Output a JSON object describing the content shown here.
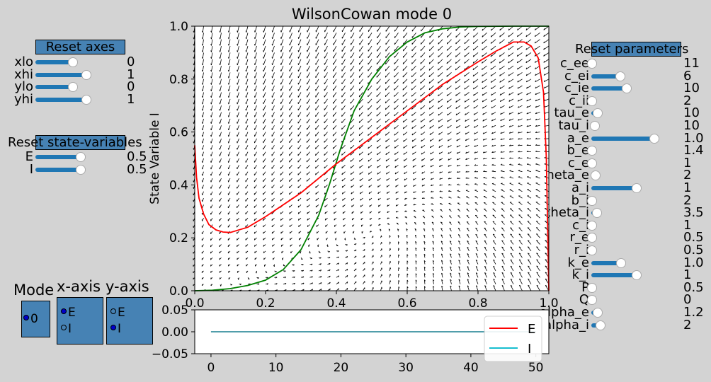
{
  "axes_panel": {
    "reset_label": "Reset axes",
    "sliders": [
      {
        "label": "xlo",
        "value": "0",
        "level": 0.64
      },
      {
        "label": "xhi",
        "value": "1",
        "level": 0.86
      },
      {
        "label": "ylo",
        "value": "0",
        "level": 0.64
      },
      {
        "label": "yhi",
        "value": "1",
        "level": 0.86
      }
    ]
  },
  "state_panel": {
    "reset_label": "Reset state-variables",
    "sliders": [
      {
        "label": "E",
        "value": "0.5",
        "level": 0.72
      },
      {
        "label": "I",
        "value": "0.5",
        "level": 0.72
      }
    ]
  },
  "params_panel": {
    "reset_label": "Reset parameters",
    "sliders": [
      {
        "label": "c_ee",
        "value": "11",
        "level": 0.0
      },
      {
        "label": "c_ei",
        "value": "6",
        "level": 0.42
      },
      {
        "label": "c_ie",
        "value": "10",
        "level": 0.52
      },
      {
        "label": "c_ii",
        "value": "2",
        "level": 0.0
      },
      {
        "label": "tau_e",
        "value": "10",
        "level": 0.08
      },
      {
        "label": "tau_i",
        "value": "10",
        "level": 0.04
      },
      {
        "label": "a_e",
        "value": "1.0",
        "level": 0.93
      },
      {
        "label": "b_e",
        "value": "1.4",
        "level": 0.0
      },
      {
        "label": "c_e",
        "value": "1",
        "level": 0.0
      },
      {
        "label": "theta_e",
        "value": "2",
        "level": 0.05
      },
      {
        "label": "a_i",
        "value": "1",
        "level": 0.66
      },
      {
        "label": "b_i",
        "value": "2",
        "level": 0.0
      },
      {
        "label": "theta_i",
        "value": "3.5",
        "level": 0.07
      },
      {
        "label": "c_i",
        "value": "1",
        "level": 0.0
      },
      {
        "label": "r_e",
        "value": "0.5",
        "level": 0.0
      },
      {
        "label": "r_i",
        "value": "0.5",
        "level": 0.0
      },
      {
        "label": "k_e",
        "value": "1.0",
        "level": 0.43
      },
      {
        "label": "k_i",
        "value": "1",
        "level": 0.66
      },
      {
        "label": "P",
        "value": "0.5",
        "level": 0.0
      },
      {
        "label": "Q",
        "value": "0",
        "level": 0.0
      },
      {
        "label": "alpha_e",
        "value": "1.2",
        "level": 0.08
      },
      {
        "label": "alpha_i",
        "value": "2",
        "level": 0.13
      }
    ]
  },
  "mode_panel": {
    "title": "Mode",
    "options": [
      {
        "label": "0",
        "selected": true
      }
    ]
  },
  "xaxis_panel": {
    "title": "x-axis",
    "options": [
      {
        "label": "E",
        "selected": true
      },
      {
        "label": "I",
        "selected": false
      }
    ]
  },
  "yaxis_panel": {
    "title": "y-axis",
    "options": [
      {
        "label": "E",
        "selected": false
      },
      {
        "label": "I",
        "selected": true
      }
    ]
  },
  "chart_data": [
    {
      "type": "line",
      "title": "WilsonCowan mode 0",
      "xlabel": "",
      "ylabel": "State Variable I",
      "xlim": [
        0,
        1
      ],
      "ylim": [
        0,
        1
      ],
      "x_ticks": [
        "0.0",
        "0.2",
        "0.4",
        "0.6",
        "0.8",
        "1.0"
      ],
      "y_ticks": [
        "0.0",
        "0.2",
        "0.4",
        "0.6",
        "0.8",
        "1.0"
      ],
      "vector_field": true,
      "series": [
        {
          "color": "#008000",
          "points": [
            [
              0,
              0
            ],
            [
              0.05,
              0.002
            ],
            [
              0.1,
              0.008
            ],
            [
              0.15,
              0.02
            ],
            [
              0.2,
              0.04
            ],
            [
              0.25,
              0.08
            ],
            [
              0.3,
              0.155
            ],
            [
              0.35,
              0.285
            ],
            [
              0.38,
              0.4
            ],
            [
              0.41,
              0.53
            ],
            [
              0.45,
              0.68
            ],
            [
              0.5,
              0.8
            ],
            [
              0.55,
              0.885
            ],
            [
              0.6,
              0.94
            ],
            [
              0.65,
              0.975
            ],
            [
              0.7,
              0.99
            ],
            [
              0.75,
              0.997
            ],
            [
              0.8,
              0.999
            ],
            [
              0.9,
              1.0
            ],
            [
              1.0,
              1.0
            ]
          ]
        },
        {
          "color": "#ff0000",
          "points": [
            [
              0.0,
              0.55
            ],
            [
              0.005,
              0.43
            ],
            [
              0.012,
              0.35
            ],
            [
              0.025,
              0.29
            ],
            [
              0.04,
              0.25
            ],
            [
              0.06,
              0.23
            ],
            [
              0.08,
              0.222
            ],
            [
              0.1,
              0.22
            ],
            [
              0.15,
              0.24
            ],
            [
              0.2,
              0.28
            ],
            [
              0.3,
              0.37
            ],
            [
              0.4,
              0.48
            ],
            [
              0.5,
              0.58
            ],
            [
              0.6,
              0.68
            ],
            [
              0.7,
              0.78
            ],
            [
              0.8,
              0.865
            ],
            [
              0.85,
              0.905
            ],
            [
              0.9,
              0.94
            ],
            [
              0.93,
              0.94
            ],
            [
              0.95,
              0.925
            ],
            [
              0.97,
              0.88
            ],
            [
              0.985,
              0.75
            ],
            [
              0.993,
              0.5
            ],
            [
              1.0,
              0.0
            ]
          ]
        }
      ]
    },
    {
      "type": "line",
      "title": "",
      "xlim": [
        -2.5,
        52
      ],
      "ylim": [
        -0.05,
        0.05
      ],
      "x_ticks": [
        "0",
        "10",
        "20",
        "30",
        "40",
        "50"
      ],
      "y_ticks": [
        "0.05",
        "0.00",
        "−0.05"
      ],
      "legend": "bottom-right",
      "series": [
        {
          "name": "E",
          "color": "#ff0000",
          "x": [
            0,
            50
          ],
          "y": [
            0,
            0
          ]
        },
        {
          "name": "I",
          "color": "#17becf",
          "x": [
            0,
            50
          ],
          "y": [
            0,
            0
          ]
        }
      ]
    }
  ]
}
